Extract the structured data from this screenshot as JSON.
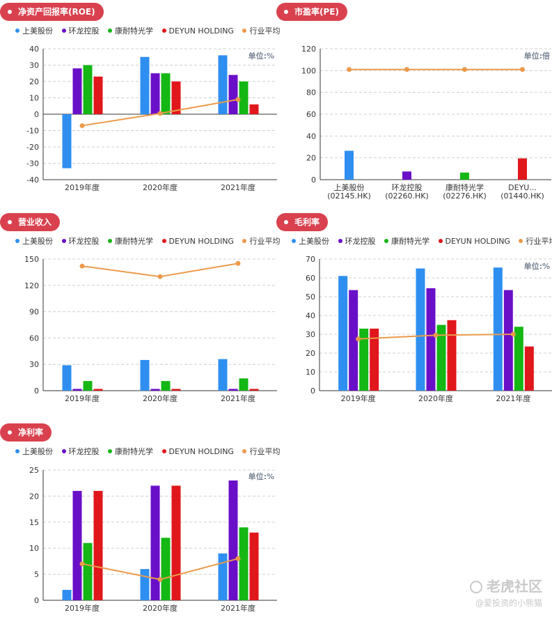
{
  "colors": {
    "pill": "#d9414e",
    "series": [
      "#2f8ff0",
      "#6a0fc8",
      "#15b715",
      "#e0171b"
    ],
    "average": "#eb9a4b",
    "unit_text": "#7a8696"
  },
  "legend_labels": [
    "上美股份",
    "环龙控股",
    "康耐特光学",
    "DEYUN HOLDING",
    "行业平均"
  ],
  "watermark": {
    "logo": "老虎社区",
    "user": "@爱投资的小熊猫"
  },
  "panels": [
    {
      "title": "净资产回报率(ROE)"
    },
    {
      "title": "市盈率(PE)"
    },
    {
      "title": "营业收入"
    },
    {
      "title": "毛利率"
    },
    {
      "title": "净利率"
    }
  ],
  "chart_data": [
    {
      "type": "bar",
      "title": "净资产回报率(ROE)",
      "unit": "单位:%",
      "categories": [
        "2019年度",
        "2020年度",
        "2021年度"
      ],
      "series": [
        {
          "name": "上美股份",
          "values": [
            -33,
            35,
            36
          ]
        },
        {
          "name": "环龙控股",
          "values": [
            28,
            25,
            24
          ]
        },
        {
          "name": "康耐特光学",
          "values": [
            30,
            25,
            20
          ]
        },
        {
          "name": "DEYUN HOLDING",
          "values": [
            23,
            20,
            6
          ]
        }
      ],
      "average": {
        "name": "行业平均",
        "values": [
          -7,
          0.5,
          9
        ]
      },
      "ylim": [
        -40,
        40
      ],
      "yticks": [
        -40,
        -30,
        -20,
        -10,
        0,
        10,
        20,
        30,
        40
      ]
    },
    {
      "type": "bar",
      "title": "市盈率(PE)",
      "unit": "单位:倍",
      "categories": [
        "上美股份",
        "环龙控股",
        "康耐特光学",
        "DEYU..."
      ],
      "category_codes": [
        "(02145.HK)",
        "(02260.HK)",
        "(02276.HK)",
        "(01440.HK)"
      ],
      "values": [
        26.5,
        7.5,
        6.5,
        19.5
      ],
      "average": {
        "name": "行业平均",
        "values": [
          101,
          101,
          101,
          101
        ]
      },
      "ylim": [
        0,
        120
      ],
      "yticks": [
        0,
        20,
        40,
        60,
        80,
        100,
        120
      ]
    },
    {
      "type": "bar",
      "title": "营业收入",
      "unit": "",
      "categories": [
        "2019年度",
        "2020年度",
        "2021年度"
      ],
      "series": [
        {
          "name": "上美股份",
          "values": [
            29,
            35,
            36
          ]
        },
        {
          "name": "环龙控股",
          "values": [
            2,
            2,
            2
          ]
        },
        {
          "name": "康耐特光学",
          "values": [
            11,
            11,
            14
          ]
        },
        {
          "name": "DEYUN HOLDING",
          "values": [
            2,
            2,
            2
          ]
        }
      ],
      "average": {
        "name": "行业平均",
        "values": [
          142,
          130,
          145
        ]
      },
      "ylim": [
        0,
        150
      ],
      "yticks": [
        0,
        30,
        60,
        90,
        120,
        150
      ]
    },
    {
      "type": "bar",
      "title": "毛利率",
      "unit": "单位:%",
      "categories": [
        "2019年度",
        "2020年度",
        "2021年度"
      ],
      "series": [
        {
          "name": "上美股份",
          "values": [
            61,
            65,
            65.5
          ]
        },
        {
          "name": "环龙控股",
          "values": [
            53.5,
            54.5,
            53.5
          ]
        },
        {
          "name": "康耐特光学",
          "values": [
            33,
            35,
            34
          ]
        },
        {
          "name": "DEYUN HOLDING",
          "values": [
            33,
            37.5,
            23.5
          ]
        }
      ],
      "average": {
        "name": "行业平均",
        "values": [
          27.5,
          29.5,
          30
        ]
      },
      "ylim": [
        0,
        70
      ],
      "yticks": [
        0,
        10,
        20,
        30,
        40,
        50,
        60,
        70
      ]
    },
    {
      "type": "bar",
      "title": "净利率",
      "unit": "单位:%",
      "categories": [
        "2019年度",
        "2020年度",
        "2021年度"
      ],
      "series": [
        {
          "name": "上美股份",
          "values": [
            2,
            6,
            9
          ]
        },
        {
          "name": "环龙控股",
          "values": [
            21,
            22,
            23
          ]
        },
        {
          "name": "康耐特光学",
          "values": [
            11,
            12,
            14
          ]
        },
        {
          "name": "DEYUN HOLDING",
          "values": [
            21,
            22,
            13
          ]
        }
      ],
      "average": {
        "name": "行业平均",
        "values": [
          7,
          4,
          8
        ]
      },
      "ylim": [
        0,
        25
      ],
      "yticks": [
        0,
        5,
        10,
        15,
        20,
        25
      ]
    }
  ]
}
